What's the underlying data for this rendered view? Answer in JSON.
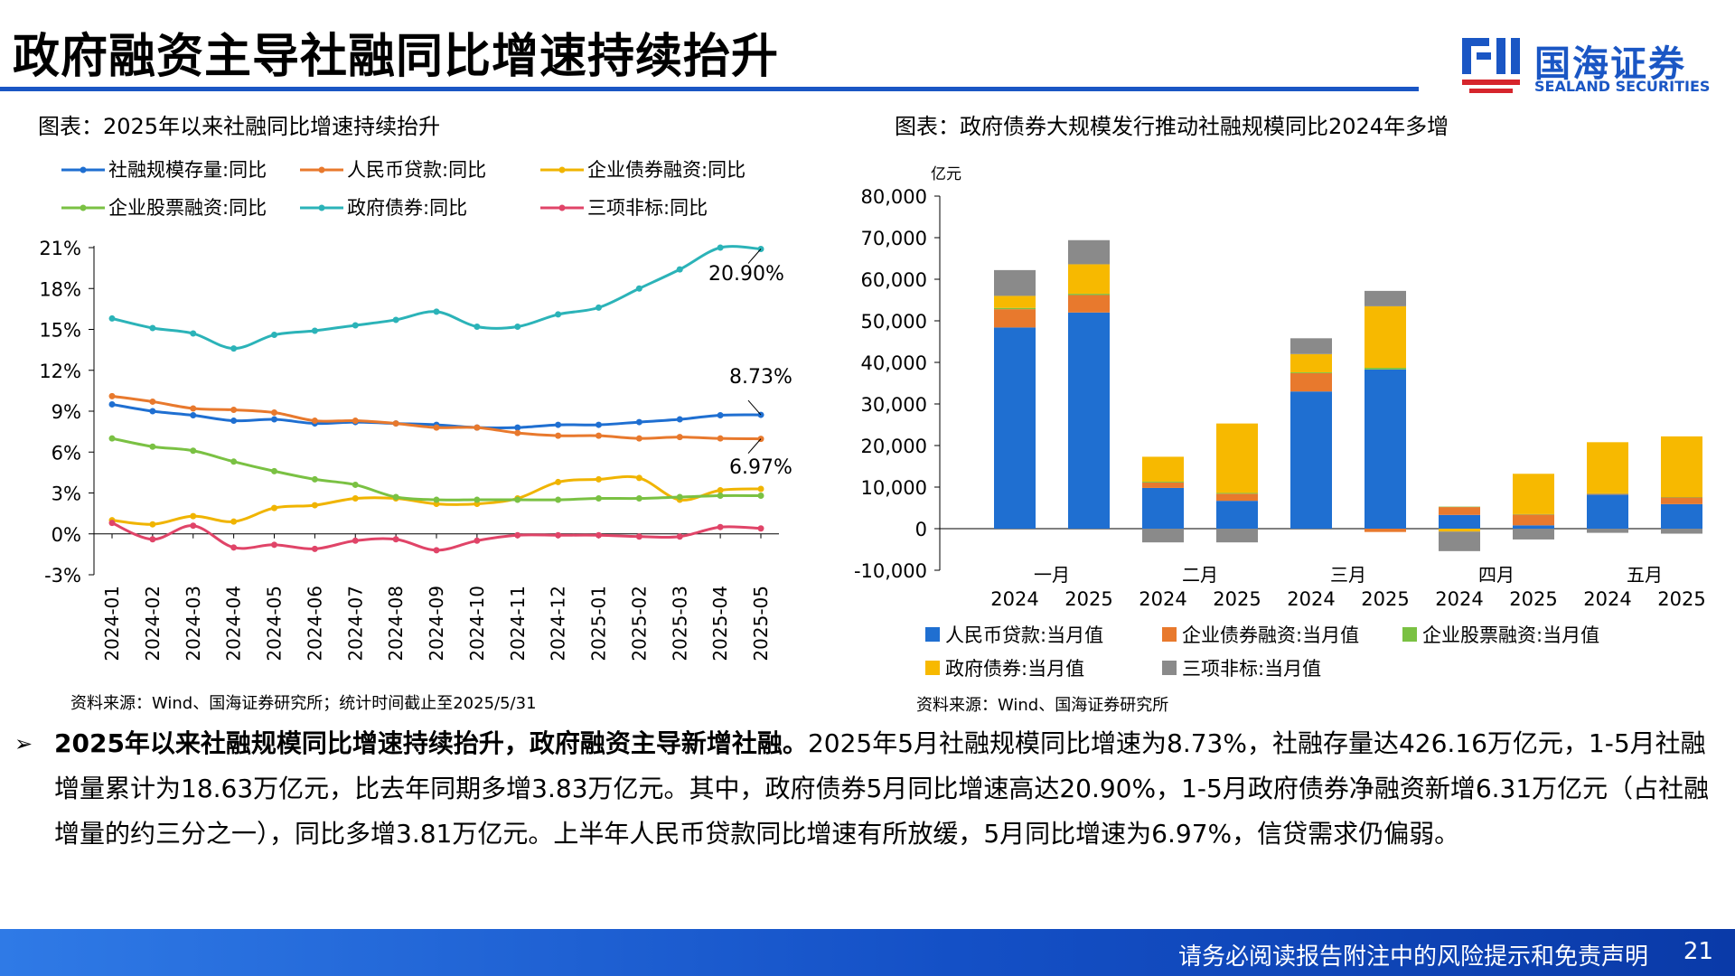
{
  "page": {
    "title": "政府融资主导社融同比增速持续抬升",
    "logo_cn": "国海证券",
    "logo_en": "SEALAND SECURITIES",
    "brand_color": "#1a56c4",
    "footer_note": "请务必阅读报告附注中的风险提示和免责声明",
    "page_number": "21"
  },
  "left": {
    "chart_title": "图表：2025年以来社融同比增速持续抬升",
    "source": "资料来源：Wind、国海证券研究所；统计时间截止至2025/5/31"
  },
  "right": {
    "chart_title": "图表：政府债券大规模发行推动社融规模同比2024年多增",
    "source": "资料来源：Wind、国海证券研究所"
  },
  "bullet": {
    "bold": "2025年以来社融规模同比增速持续抬升，政府融资主导新增社融。",
    "rest": "2025年5月社融规模同比增速为8.73%，社融存量达426.16万亿元，1-5月社融增量累计为18.63万亿元，比去年同期多增3.83万亿元。其中，政府债券5月同比增速高达20.90%，1-5月政府债券净融资新增6.31万亿元（占社融增量的约三分之一），同比多增3.81万亿元。上半年人民币贷款同比增速有所放缓，5月同比增速为6.97%，信贷需求仍偏弱。"
  },
  "chart_data": [
    {
      "type": "line",
      "title": "2025年以来社融同比增速持续抬升",
      "ylim": [
        -3,
        21
      ],
      "y_ticks": [
        "-3%",
        "0%",
        "3%",
        "6%",
        "9%",
        "12%",
        "15%",
        "18%",
        "21%"
      ],
      "x": [
        "2024-01",
        "2024-02",
        "2024-03",
        "2024-04",
        "2024-05",
        "2024-06",
        "2024-07",
        "2024-08",
        "2024-09",
        "2024-10",
        "2024-11",
        "2024-12",
        "2025-01",
        "2025-02",
        "2025-03",
        "2025-04",
        "2025-05"
      ],
      "series": [
        {
          "name": "社融规模存量:同比",
          "color": "#1f6fd1",
          "values": [
            9.5,
            9.0,
            8.7,
            8.3,
            8.4,
            8.1,
            8.2,
            8.1,
            8.0,
            7.8,
            7.8,
            8.0,
            8.0,
            8.2,
            8.4,
            8.7,
            8.73
          ]
        },
        {
          "name": "人民币贷款:同比",
          "color": "#e8792d",
          "values": [
            10.1,
            9.7,
            9.2,
            9.1,
            8.9,
            8.3,
            8.3,
            8.1,
            7.8,
            7.8,
            7.4,
            7.2,
            7.2,
            7.0,
            7.1,
            7.0,
            6.97
          ]
        },
        {
          "name": "企业债券融资:同比",
          "color": "#f0b400",
          "values": [
            1.0,
            0.7,
            1.3,
            0.9,
            1.9,
            2.1,
            2.6,
            2.6,
            2.2,
            2.2,
            2.6,
            3.8,
            4.0,
            4.1,
            2.5,
            3.2,
            3.3
          ]
        },
        {
          "name": "企业股票融资:同比",
          "color": "#7ac143",
          "values": [
            7.0,
            6.4,
            6.1,
            5.3,
            4.6,
            4.0,
            3.6,
            2.7,
            2.5,
            2.5,
            2.5,
            2.5,
            2.6,
            2.6,
            2.7,
            2.8,
            2.8
          ]
        },
        {
          "name": "政府债券:同比",
          "color": "#2bb3b8",
          "values": [
            15.8,
            15.1,
            14.7,
            13.6,
            14.6,
            14.9,
            15.3,
            15.7,
            16.3,
            15.2,
            15.2,
            16.1,
            16.6,
            18.0,
            19.4,
            21.0,
            20.9
          ]
        },
        {
          "name": "三项非标:同比",
          "color": "#e04468",
          "values": [
            0.8,
            -0.4,
            0.6,
            -1.0,
            -0.8,
            -1.1,
            -0.5,
            -0.4,
            -1.2,
            -0.5,
            -0.1,
            -0.1,
            -0.1,
            -0.2,
            -0.2,
            0.5,
            0.4
          ]
        }
      ],
      "annotations": [
        {
          "text": "20.90%",
          "series": 4,
          "index": 16
        },
        {
          "text": "8.73%",
          "series": 0,
          "index": 16
        },
        {
          "text": "6.97%",
          "series": 1,
          "index": 16
        }
      ]
    },
    {
      "type": "bar",
      "stacked": true,
      "title": "政府债券大规模发行推动社融规模同比2024年多增",
      "ylabel": "亿元",
      "ylim": [
        -10000,
        80000
      ],
      "y_ticks": [
        "-10,000",
        "0",
        "10,000",
        "20,000",
        "30,000",
        "40,000",
        "50,000",
        "60,000",
        "70,000",
        "80,000"
      ],
      "categories": [
        "2024",
        "2025",
        "2024",
        "2025",
        "2024",
        "2025",
        "2024",
        "2025",
        "2024",
        "2025"
      ],
      "groups": [
        "一月",
        "二月",
        "三月",
        "四月",
        "五月"
      ],
      "series": [
        {
          "name": "人民币贷款:当月值",
          "color": "#1f6fd1",
          "values": [
            48400,
            52000,
            9800,
            6700,
            33000,
            38300,
            3300,
            800,
            8200,
            5900
          ]
        },
        {
          "name": "企业债券融资:当月值",
          "color": "#e8792d",
          "values": [
            4400,
            4200,
            1300,
            1700,
            4400,
            -800,
            1900,
            2600,
            200,
            1600
          ]
        },
        {
          "name": "企业股票融资:当月值",
          "color": "#7ac143",
          "values": [
            300,
            300,
            200,
            200,
            200,
            400,
            100,
            100,
            100,
            100
          ]
        },
        {
          "name": "政府债券:当月值",
          "color": "#f7b900",
          "values": [
            2900,
            7100,
            6000,
            16700,
            4400,
            14800,
            -700,
            9700,
            12300,
            14600
          ]
        },
        {
          "name": "三项非标:当月值",
          "color": "#8a8a8a",
          "values": [
            6200,
            5800,
            -3300,
            -3300,
            3800,
            3700,
            -4700,
            -2600,
            -1000,
            -1200
          ]
        }
      ]
    }
  ]
}
